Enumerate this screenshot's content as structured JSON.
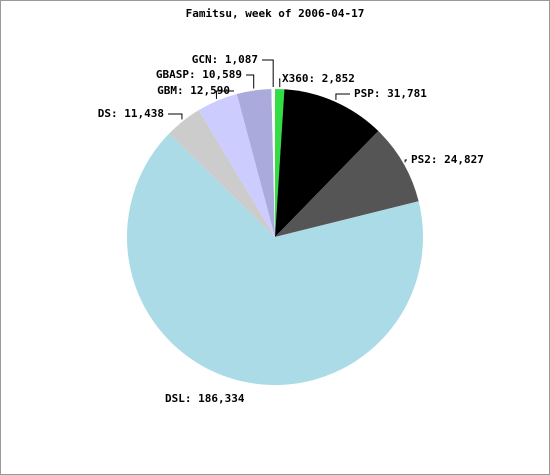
{
  "chart_data": {
    "type": "pie",
    "title": "Famitsu, week of 2006-04-17",
    "values": [
      2852,
      31781,
      24827,
      186334,
      11438,
      12590,
      10589,
      1087
    ],
    "value_labels": [
      "X360: 2,852",
      "PSP: 31,781",
      "PS2: 24,827",
      "DSL: 186,334",
      "DS: 11,438",
      "GBM: 12,590",
      "GBASP: 10,589",
      "GCN: 1,087"
    ],
    "colors": [
      "#33dd44",
      "#000000",
      "#555555",
      "#aadbe6",
      "#cccccc",
      "#ccccff",
      "#aaaadd",
      "#ffffff"
    ]
  }
}
